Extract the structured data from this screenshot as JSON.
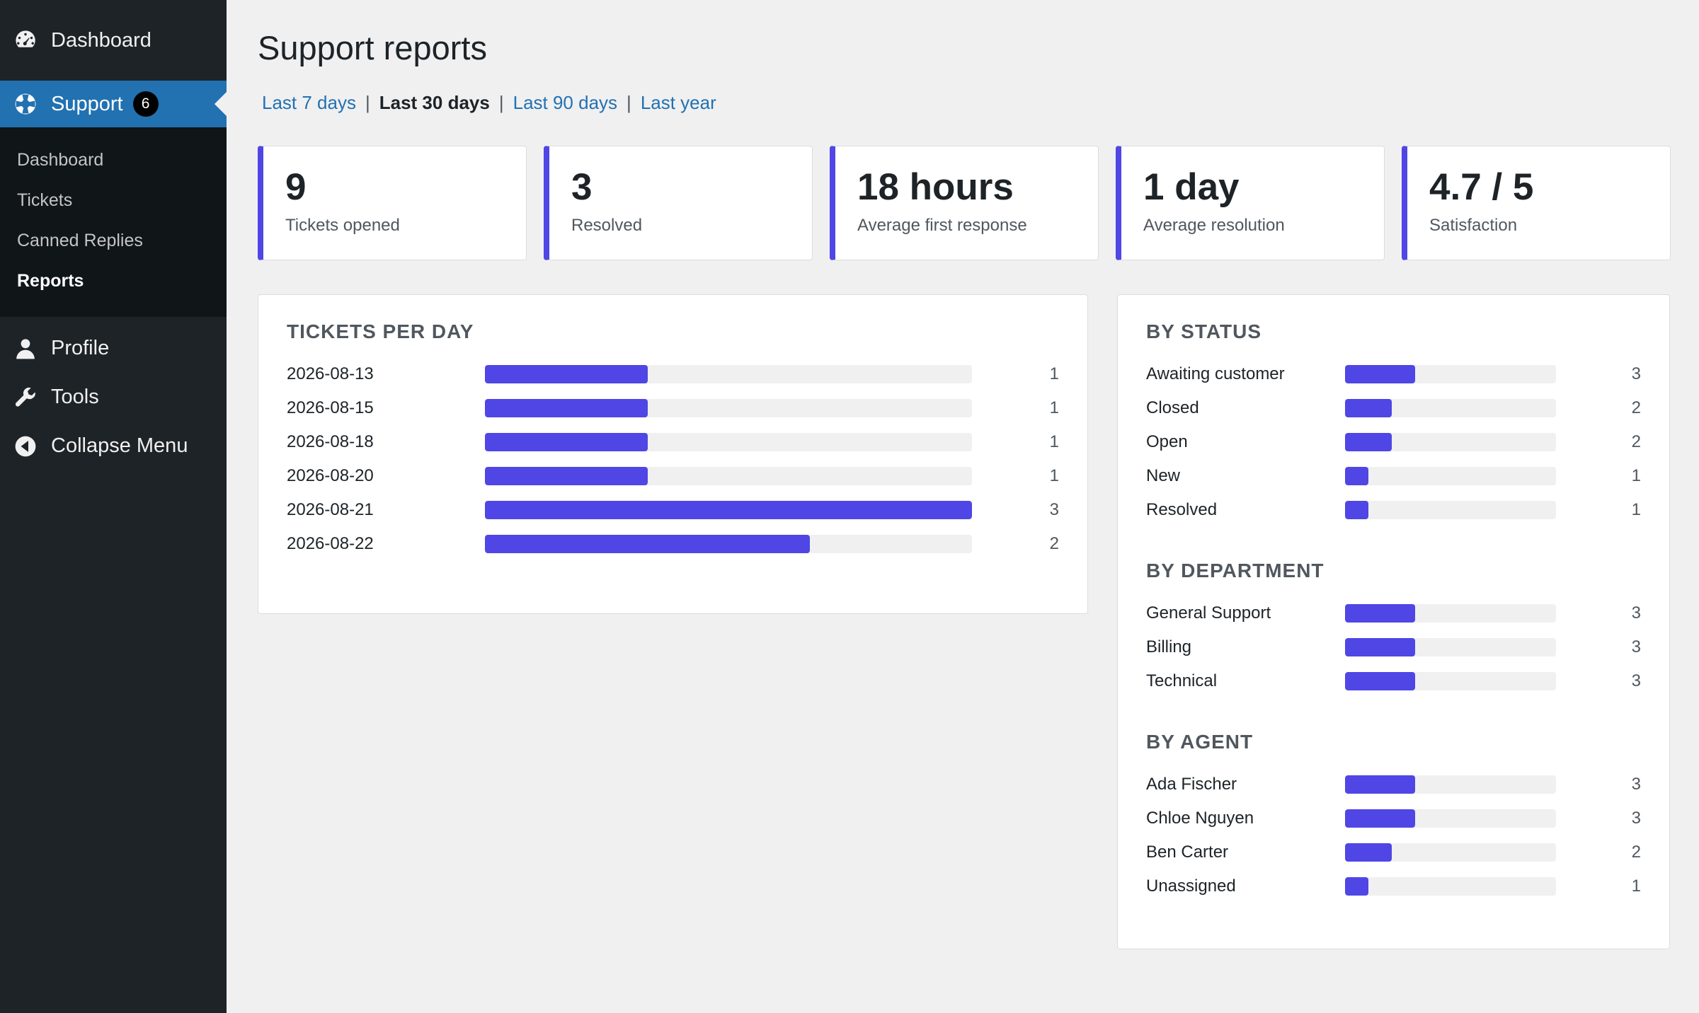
{
  "sidebar": {
    "top": {
      "label": "Dashboard",
      "icon": "dashboard-icon"
    },
    "support": {
      "label": "Support",
      "badge": "6",
      "icon": "support-lifebuoy-icon"
    },
    "submenu": [
      {
        "label": "Dashboard",
        "active": false
      },
      {
        "label": "Tickets",
        "active": false
      },
      {
        "label": "Canned Replies",
        "active": false
      },
      {
        "label": "Reports",
        "active": true
      }
    ],
    "profile": {
      "label": "Profile",
      "icon": "user-icon"
    },
    "tools": {
      "label": "Tools",
      "icon": "wrench-icon"
    },
    "collapse": {
      "label": "Collapse Menu",
      "icon": "collapse-icon"
    }
  },
  "page": {
    "title": "Support reports",
    "ranges": [
      "Last 7 days",
      "Last 30 days",
      "Last 90 days",
      "Last year"
    ],
    "current_range": "Last 30 days"
  },
  "cards": [
    {
      "value": "9",
      "label": "Tickets opened"
    },
    {
      "value": "3",
      "label": "Resolved"
    },
    {
      "value": "18 hours",
      "label": "Average first response"
    },
    {
      "value": "1 day",
      "label": "Average resolution"
    },
    {
      "value": "4.7 / 5",
      "label": "Satisfaction"
    }
  ],
  "colors": {
    "accent": "#4f46e5",
    "menu_current": "#2271b1",
    "sidebar": "#1d2327"
  },
  "tickets_per_day": {
    "title": "TICKETS PER DAY",
    "max": 3,
    "rows": [
      {
        "label": "2026-08-13",
        "count": 1
      },
      {
        "label": "2026-08-15",
        "count": 1
      },
      {
        "label": "2026-08-18",
        "count": 1
      },
      {
        "label": "2026-08-20",
        "count": 1
      },
      {
        "label": "2026-08-21",
        "count": 3
      },
      {
        "label": "2026-08-22",
        "count": 2
      }
    ]
  },
  "breakdowns": {
    "max": 9,
    "sections": [
      {
        "title": "BY STATUS",
        "rows": [
          {
            "label": "Awaiting customer",
            "count": 3
          },
          {
            "label": "Closed",
            "count": 2
          },
          {
            "label": "Open",
            "count": 2
          },
          {
            "label": "New",
            "count": 1
          },
          {
            "label": "Resolved",
            "count": 1
          }
        ]
      },
      {
        "title": "BY DEPARTMENT",
        "rows": [
          {
            "label": "General Support",
            "count": 3
          },
          {
            "label": "Billing",
            "count": 3
          },
          {
            "label": "Technical",
            "count": 3
          }
        ]
      },
      {
        "title": "BY AGENT",
        "rows": [
          {
            "label": "Ada Fischer",
            "count": 3
          },
          {
            "label": "Chloe Nguyen",
            "count": 3
          },
          {
            "label": "Ben Carter",
            "count": 2
          },
          {
            "label": "Unassigned",
            "count": 1
          }
        ]
      }
    ]
  }
}
